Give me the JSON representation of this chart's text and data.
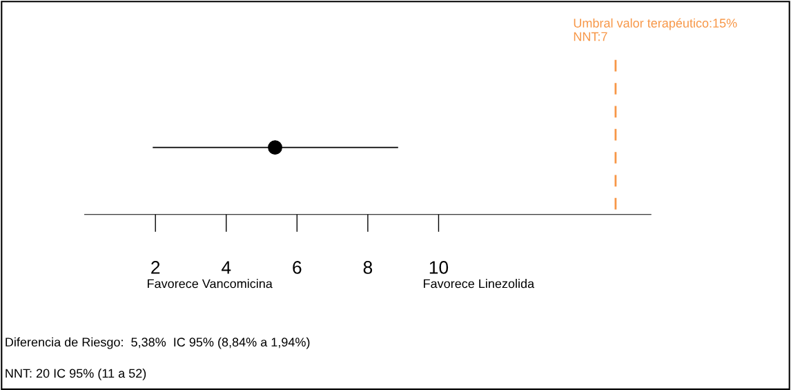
{
  "chart_data": {
    "type": "scatter",
    "orientation": "horizontal",
    "categories": [
      null
    ],
    "values": [
      5.38
    ],
    "color": "#000000",
    "marker": "circle",
    "errors": [
      [
        1.94,
        8.84
      ]
    ],
    "xlim": [
      0,
      16
    ],
    "xticks": [
      2,
      4,
      6,
      8,
      10
    ],
    "tick_labels": "x",
    "grid": false,
    "ref_lines": [
      {
        "axis": "x",
        "value": 15,
        "label": "Umbral valor terapéutico:15%\nNNT:7",
        "color": "#f79646",
        "line_style": "dashed"
      }
    ],
    "annotations": [
      "Favorece Vancomicina",
      "Favorece Linezolida",
      "Diferencia de Riesgo:  5,38%  IC 95% (8,84% a 1,94%)",
      "NNT: 20 IC 95% (11 a 52)"
    ]
  }
}
